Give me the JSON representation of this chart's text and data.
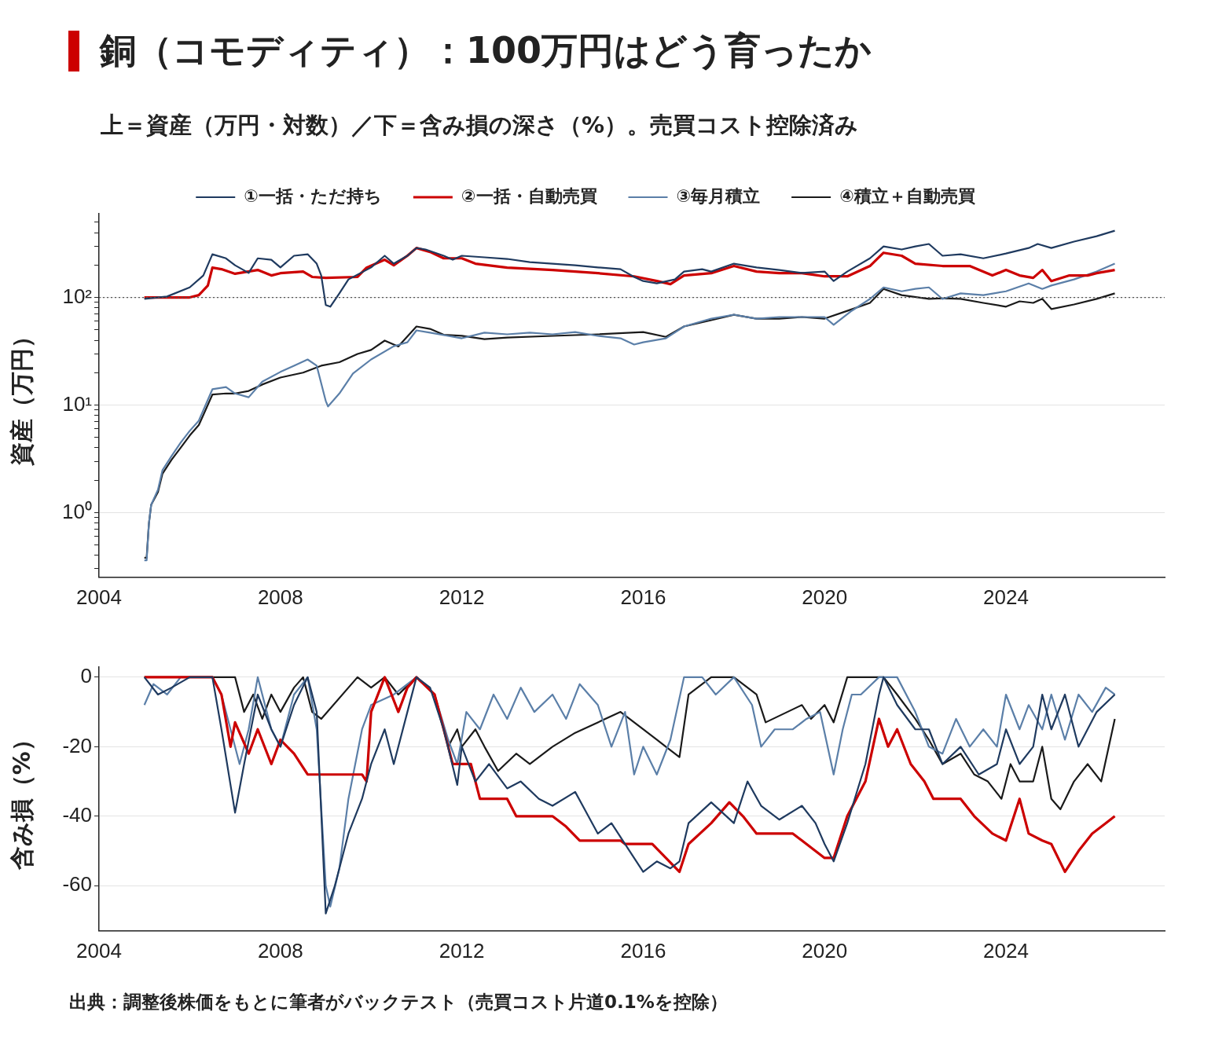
{
  "chart_data": [
    {
      "type": "line",
      "title": "銅（コモディティ）：100万円はどう育ったか",
      "subtitle": "上＝資産（万円・対数）／下＝含み損の深さ（%）。売買コスト控除済み",
      "ylabel": "資産（万円）",
      "log": true,
      "grid": "y",
      "legend": "top",
      "xlim": [
        2004,
        2027.5
      ],
      "xticks": [
        2004,
        2008,
        2012,
        2016,
        2020,
        2024
      ],
      "ylim": [
        0.25,
        600
      ],
      "yticks": [
        {
          "value": 0.3,
          "label": null
        },
        {
          "value": 0.4,
          "label": null
        },
        {
          "value": 0.5,
          "label": null
        },
        {
          "value": 0.6,
          "label": null
        },
        {
          "value": 0.7,
          "label": null
        },
        {
          "value": 0.8,
          "label": null
        },
        {
          "value": 0.9,
          "label": null
        },
        {
          "value": 1,
          "label": "10⁰"
        },
        {
          "value": 2,
          "label": null
        },
        {
          "value": 3,
          "label": null
        },
        {
          "value": 4,
          "label": null
        },
        {
          "value": 5,
          "label": null
        },
        {
          "value": 6,
          "label": null
        },
        {
          "value": 7,
          "label": null
        },
        {
          "value": 8,
          "label": null
        },
        {
          "value": 9,
          "label": null
        },
        {
          "value": 10,
          "label": "10¹"
        },
        {
          "value": 20,
          "label": null
        },
        {
          "value": 30,
          "label": null
        },
        {
          "value": 40,
          "label": null
        },
        {
          "value": 50,
          "label": null
        },
        {
          "value": 60,
          "label": null
        },
        {
          "value": 70,
          "label": null
        },
        {
          "value": 80,
          "label": null
        },
        {
          "value": 90,
          "label": null
        },
        {
          "value": 100,
          "label": "10²"
        },
        {
          "value": 200,
          "label": null
        },
        {
          "value": 300,
          "label": null
        },
        {
          "value": 400,
          "label": null
        },
        {
          "value": 500,
          "label": null
        }
      ],
      "ref_lines": [
        {
          "axis": "y",
          "value": 100,
          "label": null,
          "color": "#555555",
          "line_style": "dotted"
        }
      ],
      "series": [
        {
          "name": "①一括・ただ持ち",
          "color": "#1f3a5f",
          "x": [
            2005.0,
            2005.5,
            2006.0,
            2006.3,
            2006.5,
            2006.8,
            2007.0,
            2007.3,
            2007.5,
            2007.8,
            2008.0,
            2008.3,
            2008.6,
            2008.8,
            2008.9,
            2009.0,
            2009.1,
            2009.3,
            2009.5,
            2010.0,
            2010.3,
            2010.5,
            2010.8,
            2011.0,
            2011.2,
            2011.6,
            2011.8,
            2012.0,
            2012.5,
            2013.0,
            2013.5,
            2014.0,
            2014.5,
            2015.0,
            2015.5,
            2015.8,
            2016.0,
            2016.3,
            2016.7,
            2016.9,
            2017.3,
            2017.5,
            2018.0,
            2018.5,
            2019.0,
            2019.5,
            2020.0,
            2020.2,
            2020.5,
            2021.0,
            2021.3,
            2021.7,
            2022.0,
            2022.3,
            2022.6,
            2023.0,
            2023.5,
            2024.0,
            2024.5,
            2024.7,
            2025.0,
            2025.5,
            2026.0,
            2026.4
          ],
          "values": [
            97,
            102,
            124,
            160,
            252,
            231,
            199,
            169,
            231,
            224,
            190,
            244,
            252,
            206,
            160,
            85,
            82,
            109,
            147,
            190,
            244,
            206,
            244,
            288,
            279,
            244,
            224,
            244,
            236,
            228,
            213,
            206,
            199,
            190,
            183,
            155,
            142,
            135,
            147,
            174,
            183,
            174,
            206,
            190,
            180,
            169,
            174,
            142,
            174,
            231,
            298,
            279,
            298,
            314,
            244,
            252,
            231,
            256,
            288,
            314,
            288,
            330,
            371,
            417
          ]
        },
        {
          "name": "②一括・自動売買",
          "color": "#cc0000",
          "x": [
            2005.0,
            2006.0,
            2006.2,
            2006.4,
            2006.5,
            2006.7,
            2007.0,
            2007.5,
            2007.8,
            2008.0,
            2008.5,
            2008.7,
            2009.0,
            2009.7,
            2009.9,
            2010.3,
            2010.5,
            2010.8,
            2011.0,
            2011.3,
            2011.6,
            2012.0,
            2012.3,
            2013.0,
            2014.0,
            2015.0,
            2015.8,
            2016.3,
            2016.6,
            2016.9,
            2017.5,
            2018.0,
            2018.5,
            2019.0,
            2019.5,
            2020.0,
            2020.5,
            2021.0,
            2021.3,
            2021.7,
            2022.0,
            2022.6,
            2023.2,
            2023.7,
            2024.0,
            2024.3,
            2024.6,
            2024.8,
            2025.0,
            2025.4,
            2025.8,
            2026.0,
            2026.4
          ],
          "values": [
            100,
            100,
            105,
            129,
            189,
            183,
            166,
            180,
            160,
            168,
            174,
            155,
            152,
            155,
            189,
            224,
            199,
            244,
            288,
            265,
            231,
            231,
            206,
            189,
            180,
            168,
            157,
            142,
            133,
            160,
            168,
            196,
            174,
            168,
            168,
            157,
            157,
            196,
            260,
            244,
            206,
            196,
            196,
            160,
            180,
            160,
            152,
            180,
            142,
            160,
            160,
            168,
            180
          ]
        },
        {
          "name": "③毎月積立",
          "color": "#5b7fa8",
          "x": [
            2005.0,
            2005.05,
            2005.1,
            2005.15,
            2005.3,
            2005.4,
            2005.6,
            2005.8,
            2006.0,
            2006.2,
            2006.35,
            2006.5,
            2006.8,
            2007.0,
            2007.3,
            2007.6,
            2008.0,
            2008.3,
            2008.6,
            2008.8,
            2009.0,
            2009.05,
            2009.3,
            2009.6,
            2010.0,
            2010.5,
            2010.8,
            2011.0,
            2011.3,
            2011.7,
            2012.0,
            2012.5,
            2013.0,
            2013.5,
            2014.0,
            2014.5,
            2015.0,
            2015.5,
            2015.8,
            2016.0,
            2016.5,
            2016.9,
            2017.5,
            2018.0,
            2018.5,
            2019.0,
            2019.5,
            2020.0,
            2020.2,
            2020.6,
            2021.0,
            2021.3,
            2021.7,
            2022.0,
            2022.3,
            2022.6,
            2023.0,
            2023.5,
            2024.0,
            2024.5,
            2024.8,
            2025.0,
            2025.5,
            2026.0,
            2026.4
          ],
          "values": [
            0.36,
            0.36,
            0.79,
            1.18,
            1.63,
            2.48,
            3.36,
            4.47,
            5.75,
            7.15,
            10,
            14.0,
            14.7,
            12.8,
            11.8,
            16.5,
            20.3,
            23.2,
            26.5,
            23.2,
            10.9,
            9.7,
            12.8,
            19.6,
            26.5,
            35.2,
            38.3,
            49.4,
            47.0,
            43.9,
            41.7,
            47.0,
            45.4,
            47,
            45.4,
            47.7,
            43.9,
            41.7,
            36.5,
            38.3,
            41.7,
            53.7,
            63.5,
            69.1,
            63.5,
            65.7,
            65.7,
            65.7,
            55.6,
            75.2,
            96.7,
            124,
            114,
            120,
            124,
            96.7,
            109,
            105,
            114,
            135,
            120,
            129,
            147,
            174,
            206
          ]
        },
        {
          "name": "④積立＋自動売買",
          "color": "#1a1a1a",
          "x": [
            2005.0,
            2005.05,
            2005.1,
            2005.15,
            2005.3,
            2005.4,
            2005.6,
            2005.8,
            2006.0,
            2006.2,
            2006.35,
            2006.5,
            2006.8,
            2007.0,
            2007.3,
            2007.6,
            2008.0,
            2008.5,
            2008.9,
            2009.3,
            2009.7,
            2010.0,
            2010.3,
            2010.6,
            2011.0,
            2011.3,
            2011.6,
            2012.0,
            2012.5,
            2013.0,
            2014.0,
            2015.0,
            2016.0,
            2016.5,
            2016.9,
            2017.5,
            2018.0,
            2018.5,
            2019.0,
            2019.5,
            2020.0,
            2020.5,
            2021.0,
            2021.3,
            2021.7,
            2022.3,
            2022.6,
            2023.0,
            2023.5,
            2024.0,
            2024.3,
            2024.6,
            2024.8,
            2025.0,
            2025.5,
            2026.0,
            2026.4
          ],
          "values": [
            0.38,
            0.38,
            0.79,
            1.18,
            1.55,
            2.3,
            3.1,
            4.0,
            5.2,
            6.5,
            9,
            12.5,
            12.8,
            12.8,
            13.5,
            15.5,
            18,
            20,
            23.2,
            25,
            29.8,
            32.5,
            39.7,
            35,
            53.7,
            51,
            45,
            44,
            41,
            42.4,
            43.9,
            45.4,
            47.7,
            43,
            53.7,
            61.4,
            69,
            63.5,
            63.5,
            65.7,
            63.5,
            75,
            89,
            120,
            105,
            97,
            98,
            97,
            89,
            82,
            92,
            89,
            97,
            78,
            86,
            97,
            109
          ]
        }
      ]
    },
    {
      "type": "line",
      "ylabel": "含み損（%）",
      "grid": "y",
      "legend": false,
      "xlim": [
        2004,
        2027.5
      ],
      "xticks": [
        2004,
        2008,
        2012,
        2016,
        2020,
        2024
      ],
      "ylim": [
        -73,
        3
      ],
      "yticks": [
        0,
        -20,
        -40,
        -60
      ],
      "annotations": [
        "出典：調整後株価をもとに筆者がバックテスト（売買コスト片道0.1%を控除）"
      ],
      "series": [
        {
          "color": "#1f3a5f",
          "x": [
            2005.0,
            2005.3,
            2005.6,
            2006.0,
            2006.5,
            2006.7,
            2007.0,
            2007.2,
            2007.5,
            2007.8,
            2008.0,
            2008.3,
            2008.6,
            2008.8,
            2009.0,
            2009.2,
            2009.5,
            2009.8,
            2010.0,
            2010.3,
            2010.5,
            2010.8,
            2011.0,
            2011.3,
            2011.6,
            2011.9,
            2012.0,
            2012.3,
            2012.6,
            2013.0,
            2013.3,
            2013.7,
            2014.0,
            2014.5,
            2015.0,
            2015.3,
            2015.7,
            2016.0,
            2016.3,
            2016.6,
            2016.8,
            2017.0,
            2017.5,
            2018.0,
            2018.3,
            2018.6,
            2019.0,
            2019.5,
            2019.8,
            2020.0,
            2020.2,
            2020.5,
            2020.9,
            2021.2,
            2021.3,
            2021.6,
            2022.0,
            2022.3,
            2022.6,
            2023.0,
            2023.4,
            2023.8,
            2024.0,
            2024.3,
            2024.6,
            2024.8,
            2025.0,
            2025.3,
            2025.6,
            2026.0,
            2026.4
          ],
          "values": [
            0,
            -5,
            -3,
            0,
            0,
            -15,
            -39,
            -25,
            -5,
            -15,
            -20,
            -8,
            0,
            -10,
            -68,
            -60,
            -45,
            -35,
            -25,
            -15,
            -25,
            -10,
            0,
            -3,
            -15,
            -31,
            -20,
            -30,
            -25,
            -32,
            -30,
            -35,
            -37,
            -33,
            -45,
            -42,
            -50,
            -56,
            -53,
            -55,
            -53,
            -42,
            -36,
            -42,
            -30,
            -37,
            -41,
            -37,
            -42,
            -48,
            -53,
            -42,
            -25,
            -5,
            0,
            -8,
            -15,
            -15,
            -25,
            -20,
            -28,
            -25,
            -15,
            -25,
            -20,
            -5,
            -15,
            -5,
            -20,
            -10,
            -5
          ]
        },
        {
          "color": "#cc0000",
          "x": [
            2005.0,
            2006.0,
            2006.5,
            2006.7,
            2006.9,
            2007.0,
            2007.3,
            2007.5,
            2007.8,
            2008.0,
            2008.3,
            2008.6,
            2009.8,
            2009.9,
            2010.0,
            2010.3,
            2010.6,
            2010.8,
            2011.0,
            2011.4,
            2011.7,
            2011.8,
            2012.2,
            2012.4,
            2013.0,
            2013.2,
            2014.0,
            2014.3,
            2014.6,
            2015.5,
            2015.6,
            2016.2,
            2016.5,
            2016.8,
            2017.0,
            2017.5,
            2017.9,
            2018.2,
            2018.5,
            2019.3,
            2019.5,
            2020.0,
            2020.2,
            2020.5,
            2020.9,
            2021.2,
            2021.4,
            2021.6,
            2021.9,
            2022.2,
            2022.4,
            2023.0,
            2023.3,
            2023.7,
            2024.0,
            2024.3,
            2024.5,
            2024.8,
            2025.0,
            2025.3,
            2025.6,
            2025.9,
            2026.2,
            2026.4
          ],
          "values": [
            0,
            0,
            0,
            -5,
            -20,
            -13,
            -22,
            -15,
            -25,
            -18,
            -22,
            -28,
            -28,
            -30,
            -10,
            0,
            -10,
            -3,
            0,
            -5,
            -20,
            -25,
            -25,
            -35,
            -35,
            -40,
            -40,
            -43,
            -47,
            -47,
            -48,
            -48,
            -52,
            -56,
            -48,
            -42,
            -36,
            -40,
            -45,
            -45,
            -47,
            -52,
            -52,
            -40,
            -30,
            -12,
            -20,
            -15,
            -25,
            -30,
            -35,
            -35,
            -40,
            -45,
            -47,
            -35,
            -45,
            -47,
            -48,
            -56,
            -50,
            -45,
            -42,
            -40
          ]
        },
        {
          "color": "#5b7fa8",
          "x": [
            2005.0,
            2005.2,
            2005.5,
            2005.8,
            2006.5,
            2006.7,
            2006.9,
            2007.1,
            2007.3,
            2007.5,
            2007.8,
            2008.0,
            2008.3,
            2008.6,
            2008.8,
            2009.0,
            2009.1,
            2009.3,
            2009.5,
            2009.8,
            2010.0,
            2010.5,
            2011.0,
            2011.4,
            2011.7,
            2011.9,
            2012.1,
            2012.4,
            2012.7,
            2013.0,
            2013.3,
            2013.6,
            2014.0,
            2014.3,
            2014.6,
            2015.0,
            2015.3,
            2015.6,
            2015.8,
            2016.0,
            2016.3,
            2016.6,
            2016.9,
            2017.3,
            2017.6,
            2018.0,
            2018.4,
            2018.6,
            2018.9,
            2019.3,
            2019.6,
            2019.9,
            2020.2,
            2020.4,
            2020.6,
            2020.8,
            2021.2,
            2021.6,
            2022.0,
            2022.3,
            2022.6,
            2022.9,
            2023.2,
            2023.5,
            2023.8,
            2024.0,
            2024.3,
            2024.5,
            2024.8,
            2025.0,
            2025.3,
            2025.6,
            2025.9,
            2026.2,
            2026.4
          ],
          "values": [
            -8,
            -2,
            -5,
            0,
            0,
            -5,
            -15,
            -25,
            -15,
            0,
            -15,
            -20,
            -5,
            0,
            -15,
            -60,
            -66,
            -55,
            -35,
            -15,
            -8,
            -5,
            0,
            -5,
            -18,
            -25,
            -10,
            -15,
            -5,
            -12,
            -3,
            -10,
            -5,
            -12,
            -2,
            -8,
            -20,
            -10,
            -28,
            -20,
            -28,
            -18,
            0,
            0,
            -5,
            0,
            -8,
            -20,
            -15,
            -15,
            -12,
            -10,
            -28,
            -15,
            -5,
            -5,
            0,
            0,
            -10,
            -20,
            -22,
            -12,
            -20,
            -15,
            -20,
            -5,
            -15,
            -8,
            -15,
            -5,
            -18,
            -5,
            -10,
            -3,
            -5
          ]
        },
        {
          "color": "#1a1a1a",
          "x": [
            2005.0,
            2007.0,
            2007.2,
            2007.4,
            2007.6,
            2007.8,
            2008.0,
            2008.3,
            2008.5,
            2008.7,
            2008.9,
            2009.7,
            2010.0,
            2010.3,
            2010.6,
            2011.0,
            2011.4,
            2011.7,
            2011.9,
            2012.0,
            2012.3,
            2012.5,
            2012.8,
            2013.2,
            2013.5,
            2014.0,
            2014.5,
            2015.0,
            2015.5,
            2016.0,
            2016.3,
            2016.5,
            2016.8,
            2017.0,
            2017.5,
            2018.0,
            2018.5,
            2018.7,
            2019.5,
            2019.7,
            2020.0,
            2020.2,
            2020.5,
            2021.0,
            2021.3,
            2021.6,
            2022.0,
            2022.3,
            2022.6,
            2023.0,
            2023.3,
            2023.6,
            2023.9,
            2024.1,
            2024.3,
            2024.6,
            2024.8,
            2025.0,
            2025.2,
            2025.5,
            2025.8,
            2026.1,
            2026.4
          ],
          "values": [
            0,
            0,
            -10,
            -5,
            -12,
            -5,
            -10,
            -3,
            0,
            -10,
            -12,
            0,
            -3,
            0,
            -5,
            0,
            -5,
            -20,
            -15,
            -20,
            -15,
            -20,
            -27,
            -22,
            -25,
            -20,
            -16,
            -13,
            -10,
            -15,
            -18,
            -20,
            -23,
            -5,
            0,
            0,
            -5,
            -13,
            -8,
            -12,
            -8,
            -13,
            0,
            0,
            0,
            -5,
            -12,
            -18,
            -25,
            -22,
            -28,
            -30,
            -35,
            -25,
            -30,
            -30,
            -20,
            -35,
            -38,
            -30,
            -25,
            -30,
            -12
          ]
        }
      ]
    }
  ]
}
